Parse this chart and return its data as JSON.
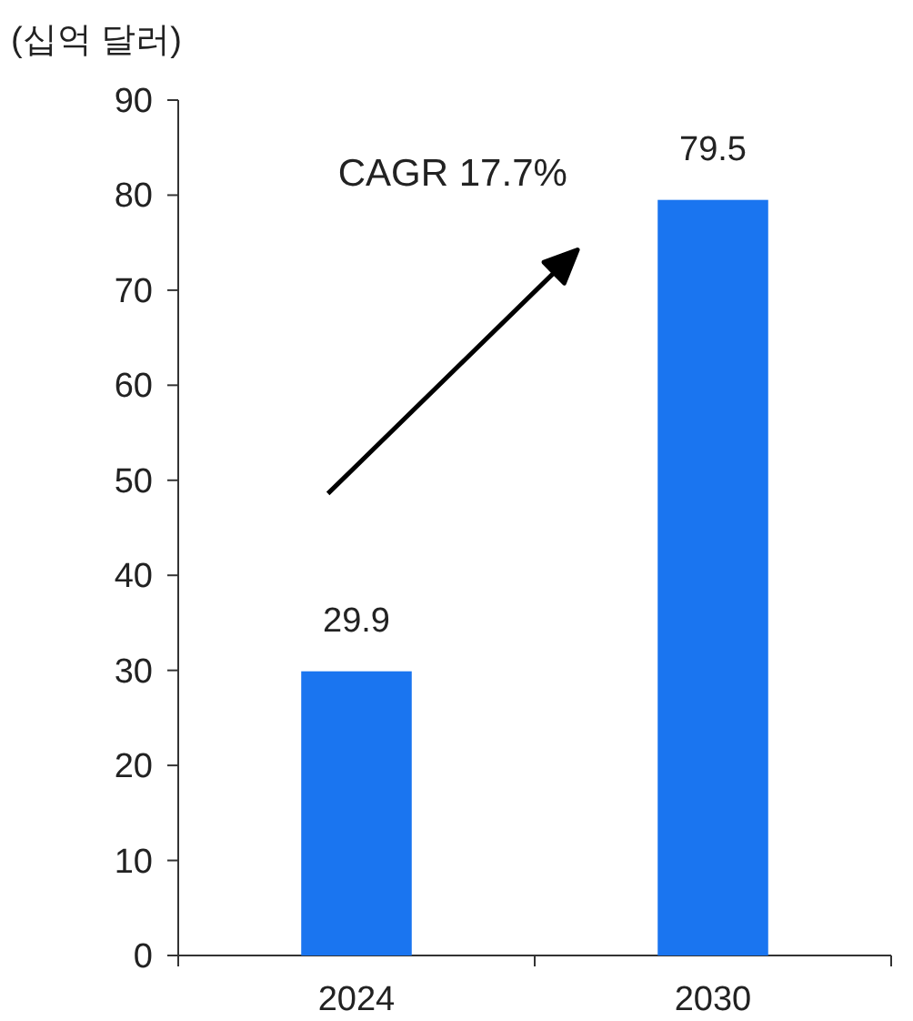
{
  "chart_data": {
    "type": "bar",
    "ylabel": "(십억 달러)",
    "categories": [
      "2024",
      "2030"
    ],
    "values": [
      29.9,
      79.5
    ],
    "color": "#1a75f0",
    "ylim": [
      0,
      90
    ],
    "yticks": [
      0,
      10,
      20,
      30,
      40,
      50,
      60,
      70,
      80,
      90
    ],
    "data_labels": true,
    "annotations": [
      "CAGR 17.7%"
    ]
  }
}
